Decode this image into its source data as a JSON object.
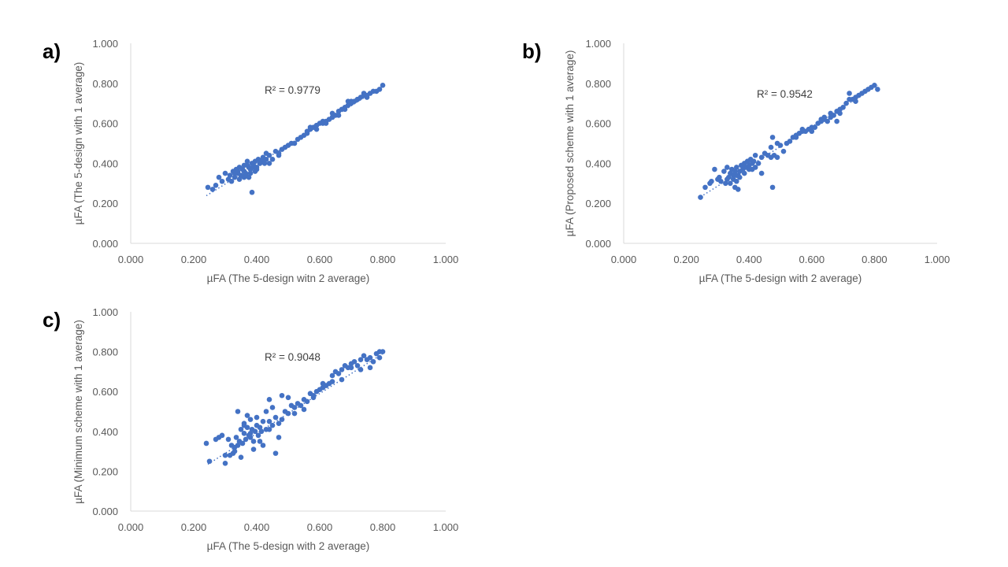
{
  "point_color": "#4472c4",
  "axis_color": "#d9d9d9",
  "chart_data": [
    {
      "type": "scatter",
      "panel": "a)",
      "xlabel": "µFA (The 5-design witn 2 average)",
      "ylabel": "µFA (The 5-design with 1 average)",
      "r2_label": "R² = 0.9779",
      "xlim": [
        0,
        1
      ],
      "ylim": [
        0,
        1
      ],
      "xticks": [
        "0.000",
        "0.200",
        "0.400",
        "0.600",
        "0.800",
        "1.000"
      ],
      "yticks": [
        "0.000",
        "0.200",
        "0.400",
        "0.600",
        "0.800",
        "1.000"
      ],
      "trendline": {
        "x": [
          0.24,
          0.81
        ],
        "y": [
          0.238,
          0.795
        ]
      },
      "x": [
        0.245,
        0.26,
        0.27,
        0.28,
        0.29,
        0.3,
        0.31,
        0.315,
        0.32,
        0.325,
        0.33,
        0.335,
        0.34,
        0.345,
        0.35,
        0.355,
        0.36,
        0.365,
        0.37,
        0.375,
        0.38,
        0.385,
        0.39,
        0.395,
        0.4,
        0.405,
        0.41,
        0.415,
        0.42,
        0.425,
        0.43,
        0.44,
        0.45,
        0.46,
        0.47,
        0.48,
        0.49,
        0.5,
        0.51,
        0.52,
        0.53,
        0.54,
        0.55,
        0.56,
        0.57,
        0.58,
        0.59,
        0.6,
        0.61,
        0.62,
        0.63,
        0.64,
        0.65,
        0.66,
        0.67,
        0.68,
        0.69,
        0.7,
        0.71,
        0.72,
        0.73,
        0.74,
        0.75,
        0.76,
        0.77,
        0.78,
        0.79,
        0.8,
        0.385,
        0.36,
        0.34,
        0.37,
        0.4,
        0.35,
        0.38,
        0.42,
        0.33,
        0.39,
        0.41,
        0.36,
        0.43,
        0.375,
        0.395,
        0.345,
        0.44,
        0.365,
        0.47,
        0.59,
        0.64,
        0.72,
        0.61,
        0.68,
        0.75,
        0.56,
        0.7,
        0.66,
        0.62,
        0.57,
        0.74,
        0.69
      ],
      "y": [
        0.28,
        0.27,
        0.29,
        0.33,
        0.31,
        0.35,
        0.32,
        0.34,
        0.31,
        0.36,
        0.33,
        0.37,
        0.35,
        0.38,
        0.34,
        0.37,
        0.36,
        0.35,
        0.39,
        0.38,
        0.37,
        0.4,
        0.39,
        0.41,
        0.38,
        0.42,
        0.4,
        0.41,
        0.43,
        0.4,
        0.42,
        0.44,
        0.42,
        0.46,
        0.44,
        0.47,
        0.48,
        0.49,
        0.5,
        0.5,
        0.52,
        0.53,
        0.54,
        0.55,
        0.57,
        0.58,
        0.59,
        0.6,
        0.6,
        0.61,
        0.62,
        0.63,
        0.64,
        0.66,
        0.67,
        0.68,
        0.69,
        0.7,
        0.71,
        0.72,
        0.73,
        0.74,
        0.74,
        0.75,
        0.76,
        0.76,
        0.77,
        0.79,
        0.255,
        0.33,
        0.36,
        0.41,
        0.37,
        0.34,
        0.35,
        0.42,
        0.35,
        0.38,
        0.4,
        0.39,
        0.45,
        0.33,
        0.36,
        0.32,
        0.4,
        0.34,
        0.45,
        0.57,
        0.65,
        0.72,
        0.61,
        0.67,
        0.73,
        0.56,
        0.71,
        0.64,
        0.6,
        0.58,
        0.75,
        0.71
      ]
    },
    {
      "type": "scatter",
      "panel": "b)",
      "xlabel": "µFA (The 5-design with 2 average)",
      "ylabel": "µFA (Proposed scheme with 1 average)",
      "r2_label": "R² = 0.9542",
      "xlim": [
        0,
        1
      ],
      "ylim": [
        0,
        1
      ],
      "xticks": [
        "0.000",
        "0.200",
        "0.400",
        "0.600",
        "0.800",
        "1.000"
      ],
      "yticks": [
        "0.000",
        "0.200",
        "0.400",
        "0.600",
        "0.800",
        "1.000"
      ],
      "trendline": {
        "x": [
          0.245,
          0.81
        ],
        "y": [
          0.232,
          0.79
        ]
      },
      "x": [
        0.245,
        0.26,
        0.275,
        0.28,
        0.29,
        0.3,
        0.305,
        0.31,
        0.32,
        0.325,
        0.33,
        0.335,
        0.34,
        0.345,
        0.35,
        0.355,
        0.36,
        0.365,
        0.37,
        0.375,
        0.38,
        0.385,
        0.39,
        0.395,
        0.4,
        0.405,
        0.41,
        0.415,
        0.42,
        0.43,
        0.44,
        0.45,
        0.46,
        0.47,
        0.475,
        0.48,
        0.49,
        0.5,
        0.51,
        0.52,
        0.53,
        0.54,
        0.55,
        0.56,
        0.57,
        0.58,
        0.59,
        0.6,
        0.61,
        0.62,
        0.63,
        0.64,
        0.65,
        0.66,
        0.67,
        0.68,
        0.69,
        0.7,
        0.71,
        0.72,
        0.73,
        0.74,
        0.75,
        0.76,
        0.77,
        0.78,
        0.79,
        0.8,
        0.81,
        0.355,
        0.365,
        0.34,
        0.385,
        0.37,
        0.4,
        0.36,
        0.42,
        0.33,
        0.44,
        0.38,
        0.395,
        0.35,
        0.41,
        0.36,
        0.47,
        0.475,
        0.49,
        0.57,
        0.6,
        0.63,
        0.66,
        0.69,
        0.72,
        0.74,
        0.55,
        0.68,
        0.64
      ],
      "y": [
        0.23,
        0.28,
        0.3,
        0.31,
        0.37,
        0.32,
        0.33,
        0.31,
        0.36,
        0.3,
        0.38,
        0.33,
        0.35,
        0.37,
        0.32,
        0.36,
        0.38,
        0.34,
        0.36,
        0.39,
        0.37,
        0.4,
        0.38,
        0.41,
        0.39,
        0.42,
        0.4,
        0.41,
        0.44,
        0.4,
        0.43,
        0.45,
        0.44,
        0.48,
        0.53,
        0.44,
        0.5,
        0.49,
        0.46,
        0.5,
        0.51,
        0.53,
        0.54,
        0.55,
        0.57,
        0.56,
        0.57,
        0.56,
        0.58,
        0.6,
        0.62,
        0.63,
        0.61,
        0.65,
        0.64,
        0.66,
        0.67,
        0.68,
        0.7,
        0.72,
        0.72,
        0.73,
        0.74,
        0.75,
        0.76,
        0.77,
        0.78,
        0.79,
        0.77,
        0.28,
        0.27,
        0.3,
        0.35,
        0.33,
        0.37,
        0.34,
        0.38,
        0.32,
        0.35,
        0.39,
        0.41,
        0.34,
        0.37,
        0.31,
        0.43,
        0.28,
        0.43,
        0.56,
        0.58,
        0.61,
        0.63,
        0.65,
        0.75,
        0.71,
        0.53,
        0.61,
        0.62
      ]
    },
    {
      "type": "scatter",
      "panel": "c)",
      "xlabel": "µFA (The 5-design with 2 average)",
      "ylabel": "µFA (Minimum scheme with 1 average)",
      "r2_label": "R² = 0.9048",
      "xlim": [
        0,
        1
      ],
      "ylim": [
        0,
        1
      ],
      "xticks": [
        "0.000",
        "0.200",
        "0.400",
        "0.600",
        "0.800",
        "1.000"
      ],
      "yticks": [
        "0.000",
        "0.200",
        "0.400",
        "0.600",
        "0.800",
        "1.000"
      ],
      "trendline": {
        "x": [
          0.245,
          0.8
        ],
        "y": [
          0.235,
          0.79
        ]
      },
      "x": [
        0.24,
        0.25,
        0.27,
        0.28,
        0.29,
        0.3,
        0.31,
        0.315,
        0.32,
        0.325,
        0.33,
        0.335,
        0.34,
        0.345,
        0.35,
        0.355,
        0.36,
        0.365,
        0.37,
        0.375,
        0.38,
        0.385,
        0.39,
        0.395,
        0.4,
        0.405,
        0.41,
        0.415,
        0.42,
        0.43,
        0.44,
        0.45,
        0.46,
        0.47,
        0.48,
        0.49,
        0.5,
        0.51,
        0.52,
        0.53,
        0.54,
        0.55,
        0.56,
        0.57,
        0.58,
        0.59,
        0.6,
        0.61,
        0.62,
        0.63,
        0.64,
        0.65,
        0.66,
        0.67,
        0.68,
        0.69,
        0.7,
        0.71,
        0.72,
        0.73,
        0.74,
        0.75,
        0.76,
        0.77,
        0.78,
        0.79,
        0.8,
        0.34,
        0.37,
        0.36,
        0.38,
        0.4,
        0.43,
        0.45,
        0.48,
        0.35,
        0.39,
        0.41,
        0.42,
        0.44,
        0.46,
        0.3,
        0.33,
        0.47,
        0.5,
        0.52,
        0.55,
        0.58,
        0.61,
        0.64,
        0.67,
        0.7,
        0.73,
        0.76,
        0.79,
        0.36,
        0.38,
        0.44
      ],
      "y": [
        0.34,
        0.25,
        0.36,
        0.37,
        0.38,
        0.24,
        0.36,
        0.28,
        0.33,
        0.29,
        0.32,
        0.37,
        0.33,
        0.35,
        0.41,
        0.34,
        0.39,
        0.36,
        0.42,
        0.38,
        0.39,
        0.41,
        0.35,
        0.4,
        0.43,
        0.38,
        0.42,
        0.4,
        0.45,
        0.41,
        0.45,
        0.43,
        0.47,
        0.44,
        0.46,
        0.5,
        0.49,
        0.53,
        0.52,
        0.54,
        0.53,
        0.56,
        0.55,
        0.59,
        0.58,
        0.6,
        0.61,
        0.62,
        0.63,
        0.64,
        0.68,
        0.7,
        0.69,
        0.71,
        0.73,
        0.72,
        0.74,
        0.75,
        0.73,
        0.76,
        0.78,
        0.76,
        0.77,
        0.75,
        0.79,
        0.8,
        0.8,
        0.5,
        0.48,
        0.44,
        0.37,
        0.47,
        0.5,
        0.52,
        0.58,
        0.27,
        0.31,
        0.35,
        0.33,
        0.41,
        0.29,
        0.28,
        0.3,
        0.37,
        0.57,
        0.49,
        0.51,
        0.57,
        0.64,
        0.65,
        0.66,
        0.72,
        0.71,
        0.72,
        0.77,
        0.43,
        0.46,
        0.56
      ]
    }
  ]
}
